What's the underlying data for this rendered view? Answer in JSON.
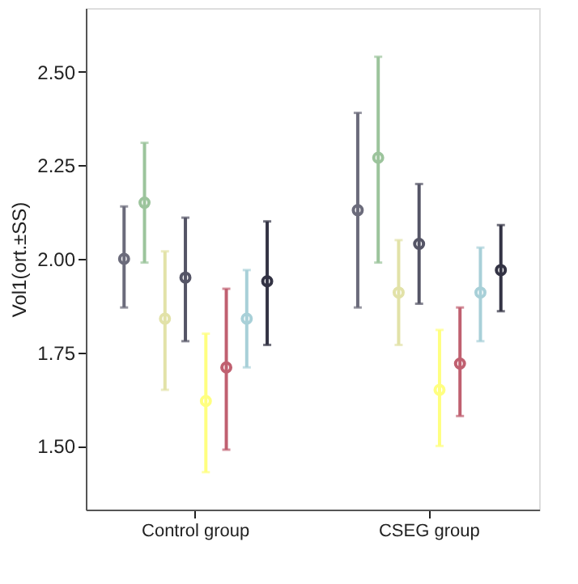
{
  "chart_data": {
    "type": "scatter",
    "ylabel": "Vol1(ort.±SS)",
    "categories": [
      "Control group",
      "CSEG group"
    ],
    "ylim": [
      1.33,
      2.67
    ],
    "yticks": [
      {
        "value": 1.5,
        "label": "1.50"
      },
      {
        "value": 1.75,
        "label": "1.75"
      },
      {
        "value": 2.0,
        "label": "2.00"
      },
      {
        "value": 2.25,
        "label": "2.25"
      },
      {
        "value": 2.5,
        "label": "2.50"
      }
    ],
    "grid": false,
    "legend": false,
    "marker": "circle",
    "series": [
      {
        "color": "#6b6b7b",
        "values": [
          2.0,
          2.13
        ],
        "errors": [
          [
            1.87,
            2.14
          ],
          [
            1.87,
            2.39
          ]
        ]
      },
      {
        "color": "#9cc49c",
        "values": [
          2.15,
          2.27
        ],
        "errors": [
          [
            1.99,
            2.31
          ],
          [
            1.99,
            2.54
          ]
        ]
      },
      {
        "color": "#e2e2a8",
        "values": [
          1.84,
          1.91
        ],
        "errors": [
          [
            1.65,
            2.02
          ],
          [
            1.77,
            2.05
          ]
        ]
      },
      {
        "color": "#555566",
        "values": [
          1.95,
          2.04
        ],
        "errors": [
          [
            1.78,
            2.11
          ],
          [
            1.88,
            2.2
          ]
        ]
      },
      {
        "color": "#ffff80",
        "values": [
          1.62,
          1.65
        ],
        "errors": [
          [
            1.43,
            1.8
          ],
          [
            1.5,
            1.81
          ]
        ]
      },
      {
        "color": "#c06070",
        "values": [
          1.71,
          1.72
        ],
        "errors": [
          [
            1.49,
            1.92
          ],
          [
            1.58,
            1.87
          ]
        ]
      },
      {
        "color": "#a8d0d8",
        "values": [
          1.84,
          1.91
        ],
        "errors": [
          [
            1.71,
            1.97
          ],
          [
            1.78,
            2.03
          ]
        ]
      },
      {
        "color": "#333344",
        "values": [
          1.94,
          1.97
        ],
        "errors": [
          [
            1.77,
            2.1
          ],
          [
            1.86,
            2.09
          ]
        ]
      }
    ]
  }
}
